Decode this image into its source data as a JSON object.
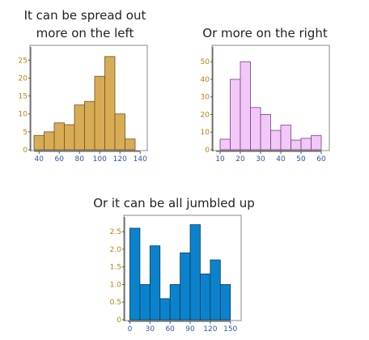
{
  "captions": {
    "left": [
      "It can be spread out",
      "more on the left"
    ],
    "right": "Or more on the right",
    "bottom": "Or it can be all jumbled up"
  },
  "colors": {
    "tick_y": "#b8860b",
    "tick_x": "#2c55a8",
    "axis": "#555555",
    "frame": "#888888"
  },
  "chart_data": [
    {
      "type": "bar",
      "title": "It can be spread out more on the left",
      "color": "#d8ac55",
      "edge": "#6b5420",
      "bin_edges": [
        35,
        45,
        55,
        65,
        75,
        85,
        95,
        105,
        115,
        125,
        135
      ],
      "values": [
        4,
        5,
        7.5,
        7,
        12.5,
        13.5,
        20.5,
        26,
        10,
        3
      ],
      "xticks": [
        40,
        60,
        80,
        100,
        120,
        140
      ],
      "yticks": [
        0,
        5,
        10,
        15,
        20,
        25
      ],
      "xlim": [
        35,
        143
      ],
      "ylim": [
        0,
        28
      ]
    },
    {
      "type": "bar",
      "title": "Or more on the right",
      "color": "#f1c8f8",
      "edge": "#7a3c82",
      "bin_edges": [
        10,
        15,
        20,
        25,
        30,
        35,
        40,
        45,
        50,
        55,
        60
      ],
      "values": [
        6,
        40,
        50,
        24,
        20,
        11,
        14,
        5.5,
        6.5,
        8
      ],
      "xticks": [
        10,
        20,
        30,
        40,
        50,
        60
      ],
      "yticks": [
        0,
        10,
        20,
        30,
        40,
        50
      ],
      "xlim": [
        8,
        62
      ],
      "ylim": [
        0,
        57
      ]
    },
    {
      "type": "bar",
      "title": "Or it can be all jumbled up",
      "color": "#0b83cc",
      "edge": "#063b5e",
      "bin_edges": [
        0,
        15,
        30,
        45,
        60,
        75,
        90,
        105,
        120,
        135,
        150
      ],
      "values": [
        2.6,
        1,
        2.1,
        0.6,
        1,
        1.9,
        2.7,
        1.3,
        1.7,
        1
      ],
      "xticks": [
        0,
        30,
        60,
        90,
        120,
        150
      ],
      "yticks": [
        0,
        0.5,
        1.0,
        1.5,
        2.0,
        2.5
      ],
      "ytick_labels": [
        "0",
        "0.5",
        "1.0",
        "1.5",
        "2.0",
        "2.5"
      ],
      "xlim": [
        -3,
        160
      ],
      "ylim": [
        0,
        2.85
      ]
    }
  ]
}
